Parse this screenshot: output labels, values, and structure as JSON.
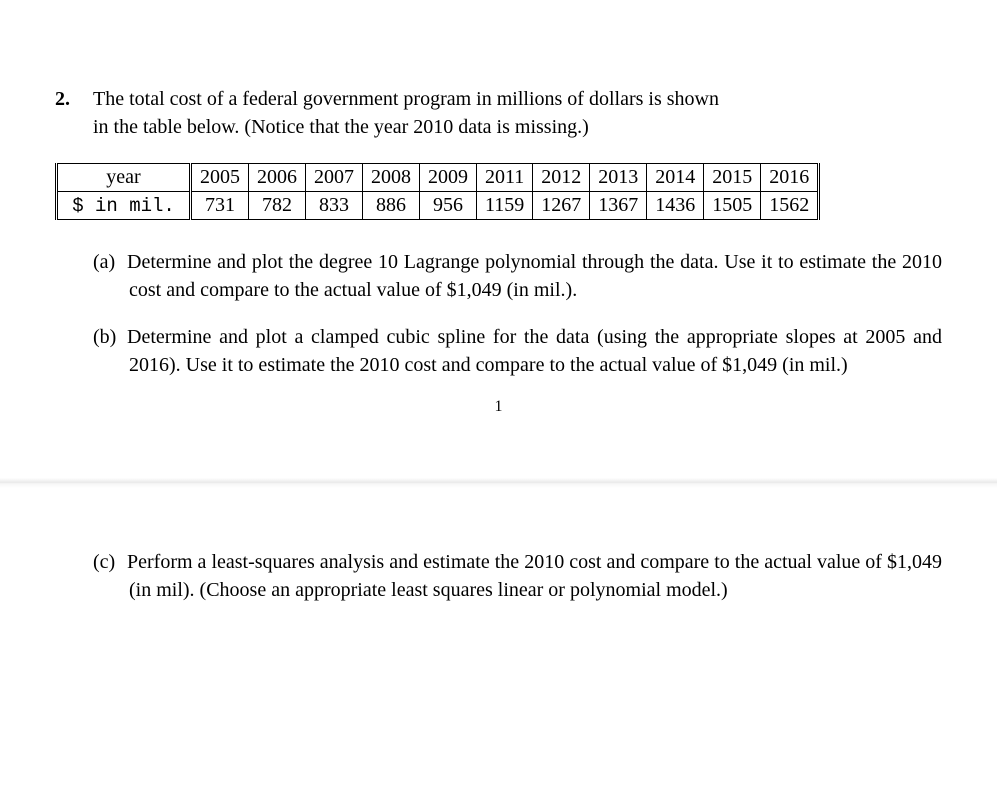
{
  "problem": {
    "number": "2.",
    "intro_line1": "The total cost of a federal government program in millions of dollars is shown",
    "intro_line2": "in the table below. (Notice that the year 2010 data is missing.)"
  },
  "table": {
    "row_label_year": "year",
    "row_label_cost": "$ in mil.",
    "columns": [
      "2005",
      "2006",
      "2007",
      "2008",
      "2009",
      "2011",
      "2012",
      "2013",
      "2014",
      "2015",
      "2016"
    ],
    "values": [
      "731",
      "782",
      "833",
      "886",
      "956",
      "1159",
      "1267",
      "1367",
      "1436",
      "1505",
      "1562"
    ]
  },
  "parts": {
    "a": {
      "label": "(a)",
      "text": "Determine and plot the degree 10 Lagrange polynomial through the data. Use it to estimate the 2010 cost and compare to the actual value of $1,049 (in mil.)."
    },
    "b": {
      "label": "(b)",
      "text": "Determine and plot a clamped cubic spline for the data (using the appropriate slopes at 2005 and 2016). Use it to estimate the 2010 cost and compare to the actual value of $1,049 (in mil.)"
    },
    "c": {
      "label": "(c)",
      "text": "Perform a least-squares analysis and estimate the 2010 cost and compare to the actual value of $1,049 (in mil). (Choose an appropriate least squares linear or polynomial model.)"
    }
  },
  "page_number": "1",
  "style": {
    "body_font_size_pt": 15,
    "text_color": "#000000",
    "background_color": "#ffffff",
    "table_border_color": "#000000"
  }
}
